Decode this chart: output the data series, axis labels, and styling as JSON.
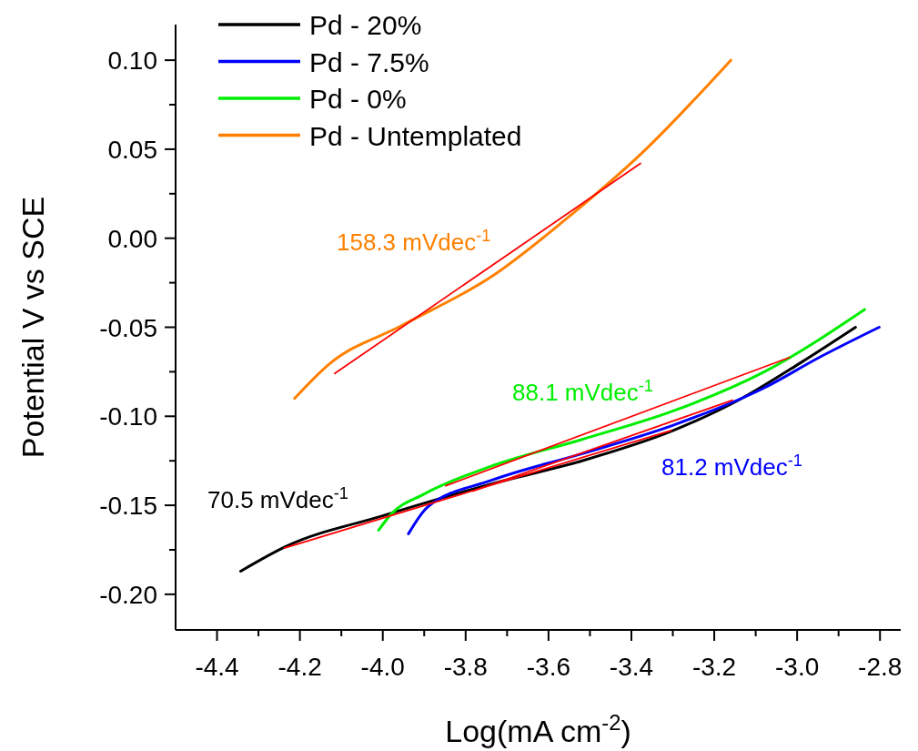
{
  "chart_data": {
    "type": "line",
    "xlabel": "Log(mA cm$^{-2}$)",
    "ylabel": "Potential V vs SCE",
    "xlim": [
      -4.5,
      -2.75
    ],
    "ylim": [
      -0.22,
      0.12
    ],
    "xticks": [
      {
        "value": -4.4,
        "label": "-4.4"
      },
      {
        "value": -4.3,
        "label": null
      },
      {
        "value": -4.2,
        "label": "-4.2"
      },
      {
        "value": -4.1,
        "label": null
      },
      {
        "value": -4.0,
        "label": "-4.0"
      },
      {
        "value": -3.9,
        "label": null
      },
      {
        "value": -3.8,
        "label": "-3.8"
      },
      {
        "value": -3.7,
        "label": null
      },
      {
        "value": -3.6,
        "label": "-3.6"
      },
      {
        "value": -3.5,
        "label": null
      },
      {
        "value": -3.4,
        "label": "-3.4"
      },
      {
        "value": -3.3,
        "label": null
      },
      {
        "value": -3.2,
        "label": "-3.2"
      },
      {
        "value": -3.1,
        "label": null
      },
      {
        "value": -3.0,
        "label": "-3.0"
      },
      {
        "value": -2.9,
        "label": null
      },
      {
        "value": -2.8,
        "label": "-2.8"
      }
    ],
    "yticks": [
      {
        "value": -0.2,
        "label": "-0.20"
      },
      {
        "value": -0.175,
        "label": null
      },
      {
        "value": -0.15,
        "label": "-0.15"
      },
      {
        "value": -0.125,
        "label": null
      },
      {
        "value": -0.1,
        "label": "-0.10"
      },
      {
        "value": -0.075,
        "label": null
      },
      {
        "value": -0.05,
        "label": "-0.05"
      },
      {
        "value": -0.025,
        "label": null
      },
      {
        "value": 0,
        "label": "0.00"
      },
      {
        "value": 0.025,
        "label": null
      },
      {
        "value": 0.05,
        "label": "0.05"
      },
      {
        "value": 0.075,
        "label": null
      },
      {
        "value": 0.1,
        "label": "0.10"
      }
    ],
    "grid": false,
    "legend": "top left",
    "marker": "none",
    "line_style": "solid",
    "series": [
      {
        "name": "Pd - 20%",
        "color": "#000000",
        "x": [
          -4.343,
          -4.233,
          -4.002,
          -3.738,
          -3.519,
          -3.299,
          -3.134,
          -2.992,
          -2.859
        ],
        "values": [
          -0.187,
          -0.173,
          -0.156,
          -0.138,
          -0.125,
          -0.108,
          -0.09,
          -0.07,
          -0.05
        ]
      },
      {
        "name": "Pd - 7.5%",
        "color": "#0000ff",
        "x": [
          -3.938,
          -3.892,
          -3.738,
          -3.519,
          -3.299,
          -3.079,
          -2.947,
          -2.802
        ],
        "values": [
          -0.166,
          -0.151,
          -0.136,
          -0.121,
          -0.105,
          -0.084,
          -0.067,
          -0.05
        ]
      },
      {
        "name": "Pd - 0%",
        "color": "#00ee00",
        "x": [
          -4.01,
          -3.98,
          -3.903,
          -3.738,
          -3.519,
          -3.299,
          -3.079,
          -2.837
        ],
        "values": [
          -0.164,
          -0.155,
          -0.144,
          -0.128,
          -0.113,
          -0.097,
          -0.075,
          -0.04
        ]
      },
      {
        "name": "Pd - Untemplated",
        "color": "#ff8000",
        "x": [
          -4.213,
          -4.131,
          -3.954,
          -3.734,
          -3.541,
          -3.374,
          -3.16
        ],
        "values": [
          -0.09,
          -0.071,
          -0.049,
          -0.021,
          0.014,
          0.048,
          0.1
        ]
      },
      {
        "color": "#ff0000",
        "x": [
          -4.238,
          -3.304
        ],
        "values": [
          -0.174,
          -0.108
        ]
      },
      {
        "color": "#ff0000",
        "x": [
          -3.782,
          -3.156
        ],
        "values": [
          -0.142,
          -0.091
        ]
      },
      {
        "color": "#ff0000",
        "x": [
          -3.848,
          -3.019
        ],
        "values": [
          -0.139,
          -0.067
        ]
      },
      {
        "color": "#ff0000",
        "x": [
          -4.116,
          -3.378
        ],
        "values": [
          -0.076,
          0.042
        ]
      }
    ],
    "annotations": [
      "70.5 mVdec$^{-1}$",
      "81.2 mVdec$^{-1}$",
      "88.1 mVdec$^{-1}$",
      "158.3 mVdec$^{-1}$"
    ]
  }
}
